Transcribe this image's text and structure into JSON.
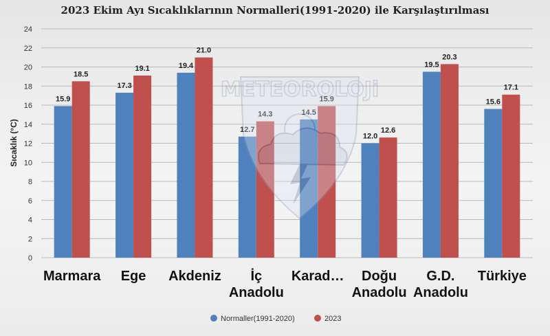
{
  "chart_data": {
    "type": "bar",
    "title": "2023 Ekim Ayı Sıcaklıklarının Normalleri(1991-2020) ile Karşılaştırılması",
    "ylabel": "Sıcaklık (°C)",
    "xlabel": "",
    "ylim": [
      0,
      24
    ],
    "yticks": [
      0,
      2,
      4,
      6,
      8,
      10,
      12,
      14,
      16,
      18,
      20,
      22,
      24
    ],
    "grid": true,
    "legend_position": "bottom",
    "categories": [
      [
        "Marmara"
      ],
      [
        "Ege"
      ],
      [
        "Akdeniz"
      ],
      [
        "İç",
        "Anadolu"
      ],
      [
        "Karad…"
      ],
      [
        "Doğu",
        "Anadolu"
      ],
      [
        "G.D.",
        "Anadolu"
      ],
      [
        "Türkiye"
      ]
    ],
    "series": [
      {
        "name": "Normaller(1991-2020)",
        "color": "#4f81bd",
        "values": [
          15.9,
          17.3,
          19.4,
          12.7,
          14.5,
          12.0,
          19.5,
          15.6
        ]
      },
      {
        "name": "2023",
        "color": "#c0504d",
        "values": [
          18.5,
          19.1,
          21.0,
          14.3,
          15.9,
          12.6,
          20.3,
          17.1
        ]
      }
    ]
  },
  "watermark": {
    "text": "METEOROLOJi",
    "icon": "storm-cloud-lightning-icon"
  }
}
